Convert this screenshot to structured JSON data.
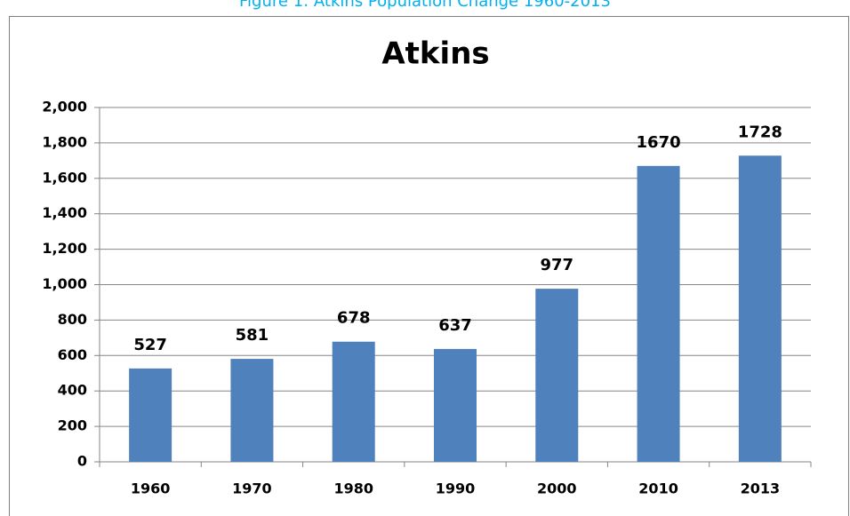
{
  "caption": "Figure 1: Atkins Population Change 1960-2013",
  "chart_data": {
    "type": "bar",
    "title": "Atkins",
    "categories": [
      "1960",
      "1970",
      "1980",
      "1990",
      "2000",
      "2010",
      "2013"
    ],
    "values": [
      527,
      581,
      678,
      637,
      977,
      1670,
      1728
    ],
    "color": "#4f81bd",
    "ylim": [
      0,
      2000
    ],
    "yticks": [
      0,
      200,
      400,
      600,
      800,
      {
        "value": 1000,
        "label": "1,000"
      },
      {
        "value": 1200,
        "label": "1,200"
      },
      {
        "value": 1400,
        "label": "1,400"
      },
      {
        "value": 1600,
        "label": "1,600"
      },
      {
        "value": 1800,
        "label": "1,800"
      },
      {
        "value": 2000,
        "label": "2,000"
      }
    ],
    "grid": true
  }
}
